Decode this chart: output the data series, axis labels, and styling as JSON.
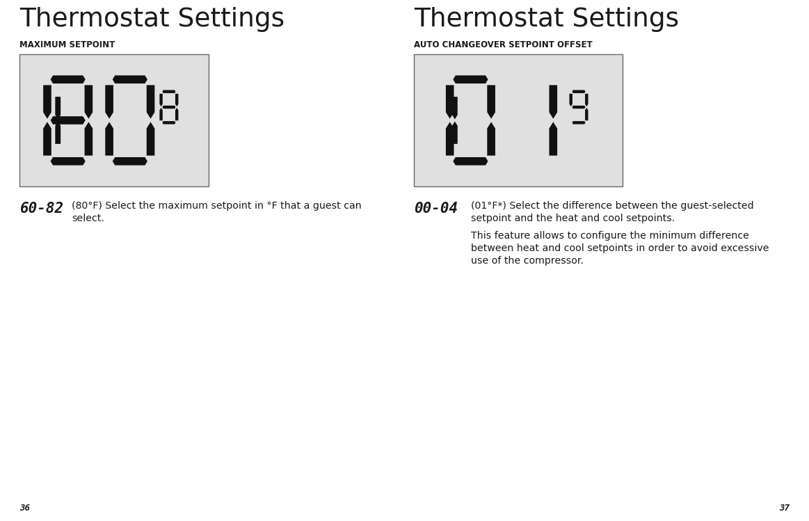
{
  "bg_color": "#ffffff",
  "title_left": "Thermostat Settings",
  "title_right": "Thermostat Settings",
  "subtitle_left": "MAXIMUM SETPOINT",
  "subtitle_right": "AUTO CHANGEOVER SETPOINT OFFSET",
  "display_bg": "#e0e0e0",
  "display_border": "#666666",
  "range_left": "60-82",
  "range_right": "00-04",
  "desc_left_line1": "(80°F) Select the maximum setpoint in °F that a guest can",
  "desc_left_line2": "select.",
  "desc_right_line1": "(01°F*) Select the difference between the guest-selected",
  "desc_right_line2": "setpoint and the heat and cool setpoints.",
  "desc_right_extra1": "This feature allows to configure the minimum difference",
  "desc_right_extra2": "between heat and cool setpoints in order to avoid excessive",
  "desc_right_extra3": "use of the compressor.",
  "page_left": "36",
  "page_right": "37",
  "display1_small_left": "1",
  "display1_big": "80",
  "display1_small_right": "8",
  "display2_small_left": "1",
  "display2_big": "01",
  "display2_small_right": "9"
}
